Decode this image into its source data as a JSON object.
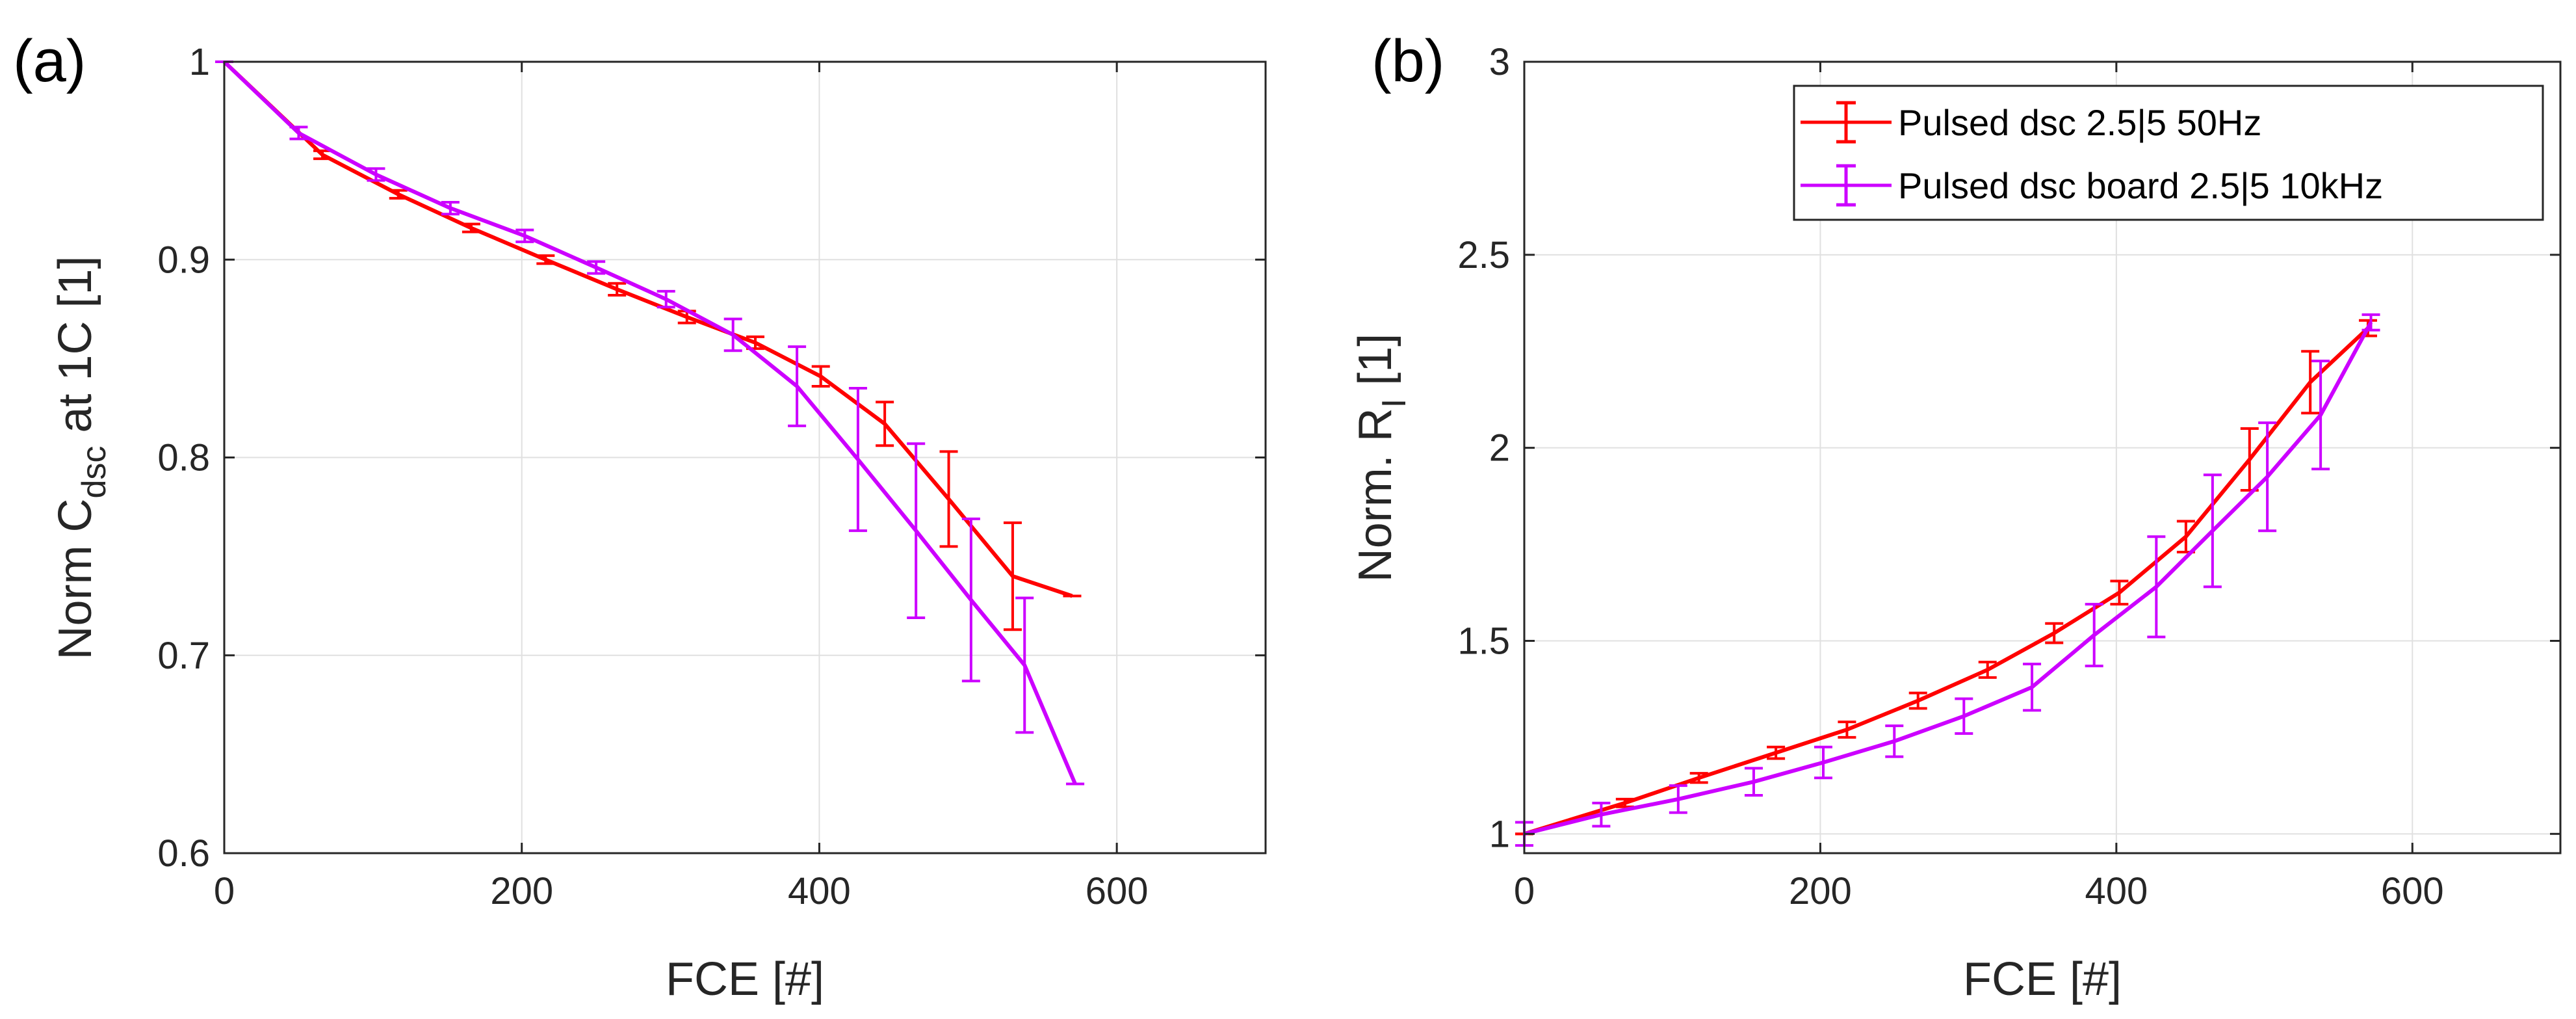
{
  "chart_data": [
    {
      "type": "line",
      "panel_label": "(a)",
      "xlabel": "FCE [#]",
      "ylabel": {
        "prefix": "Norm C",
        "sub": "dsc",
        "suffix": " at 1C [1]"
      },
      "xlim": [
        0,
        700
      ],
      "ylim": [
        0.6,
        1.0
      ],
      "xticks": [
        0,
        200,
        400,
        600
      ],
      "yticks": [
        0.6,
        0.7,
        0.8,
        0.9,
        1.0
      ],
      "xtick_labels": [
        "0",
        "200",
        "400",
        "600"
      ],
      "ytick_labels": [
        "0.6",
        "0.7",
        "0.8",
        "0.9",
        "1"
      ],
      "grid": true,
      "series": [
        {
          "name": "Pulsed dsc 2.5|5 50Hz",
          "color": "#ff0000",
          "x": [
            0,
            66,
            117,
            166,
            216,
            264,
            311,
            357,
            401,
            444,
            487,
            530,
            570
          ],
          "y": [
            1.0,
            0.953,
            0.933,
            0.916,
            0.9,
            0.885,
            0.871,
            0.858,
            0.841,
            0.817,
            0.779,
            0.74,
            0.73
          ],
          "err": [
            0.0,
            0.002,
            0.002,
            0.002,
            0.002,
            0.003,
            0.003,
            0.003,
            0.005,
            0.011,
            0.024,
            0.027,
            0.0
          ]
        },
        {
          "name": "Pulsed dsc board 2.5|5 10kHz",
          "color": "#cc00ff",
          "x": [
            0,
            50,
            102,
            152,
            202,
            250,
            297,
            342,
            385,
            426,
            465,
            502,
            538,
            572
          ],
          "y": [
            1.0,
            0.964,
            0.943,
            0.926,
            0.912,
            0.896,
            0.88,
            0.862,
            0.836,
            0.799,
            0.763,
            0.728,
            0.695,
            0.635
          ],
          "err": [
            0.0,
            0.003,
            0.003,
            0.003,
            0.003,
            0.003,
            0.004,
            0.008,
            0.02,
            0.036,
            0.044,
            0.041,
            0.034,
            0.0
          ]
        }
      ]
    },
    {
      "type": "line",
      "panel_label": "(b)",
      "xlabel": "FCE [#]",
      "ylabel": {
        "prefix": "Norm. R",
        "sub": "I",
        "suffix": " [1]"
      },
      "xlim": [
        0,
        700
      ],
      "ylim": [
        0.95,
        3.0
      ],
      "xticks": [
        0,
        200,
        400,
        600
      ],
      "yticks": [
        1,
        1.5,
        2,
        2.5,
        3
      ],
      "xtick_labels": [
        "0",
        "200",
        "400",
        "600"
      ],
      "ytick_labels": [
        "1",
        "1.5",
        "2",
        "2.5",
        "3"
      ],
      "grid": true,
      "legend": {
        "location": "top-right",
        "entries": [
          "Pulsed dsc 2.5|5 50Hz",
          "Pulsed dsc board 2.5|5 10kHz"
        ]
      },
      "series": [
        {
          "name": "Pulsed dsc 2.5|5 50Hz",
          "color": "#ff0000",
          "x": [
            0,
            68,
            118,
            170,
            218,
            266,
            313,
            358,
            402,
            447,
            490,
            531,
            570
          ],
          "y": [
            1.0,
            1.08,
            1.145,
            1.21,
            1.27,
            1.345,
            1.425,
            1.52,
            1.625,
            1.77,
            1.97,
            2.17,
            2.31
          ],
          "err": [
            0.0,
            0.01,
            0.012,
            0.015,
            0.02,
            0.02,
            0.02,
            0.025,
            0.03,
            0.04,
            0.08,
            0.08,
            0.02
          ]
        },
        {
          "name": "Pulsed dsc board 2.5|5 10kHz",
          "color": "#cc00ff",
          "x": [
            0,
            52,
            104,
            155,
            202,
            250,
            297,
            343,
            385,
            427,
            465,
            502,
            538,
            572
          ],
          "y": [
            1.0,
            1.05,
            1.09,
            1.135,
            1.185,
            1.24,
            1.305,
            1.38,
            1.515,
            1.64,
            1.785,
            1.925,
            2.085,
            2.325
          ],
          "err": [
            0.03,
            0.03,
            0.035,
            0.035,
            0.04,
            0.04,
            0.045,
            0.06,
            0.08,
            0.13,
            0.145,
            0.14,
            0.14,
            0.02
          ]
        }
      ]
    }
  ]
}
